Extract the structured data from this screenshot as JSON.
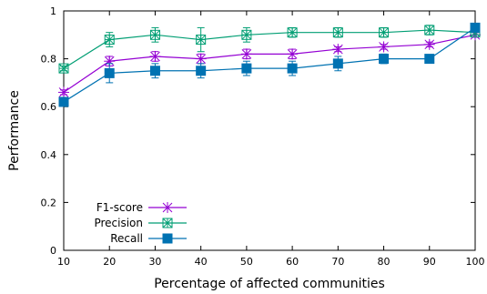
{
  "chart_data": {
    "type": "line",
    "xlabel": "Percentage of affected communities",
    "ylabel": "Performance",
    "xlim": [
      10,
      100
    ],
    "ylim": [
      0,
      1
    ],
    "x": [
      10,
      20,
      30,
      40,
      50,
      60,
      70,
      80,
      90,
      100
    ],
    "xticks": [
      "10",
      "20",
      "30",
      "40",
      "50",
      "60",
      "70",
      "80",
      "90",
      "100"
    ],
    "yticks": [
      "0",
      "0.2",
      "0.4",
      "0.6",
      "0.8",
      "1"
    ],
    "grid": false,
    "legend_position": "bottom-left",
    "series": [
      {
        "name": "F1-score",
        "color": "#9400d3",
        "marker": "star",
        "values": [
          0.66,
          0.79,
          0.81,
          0.8,
          0.82,
          0.82,
          0.84,
          0.85,
          0.86,
          0.9
        ],
        "errors": [
          0.01,
          0.02,
          0.02,
          0.02,
          0.02,
          0.02,
          0.01,
          0.01,
          0.01,
          0.01
        ]
      },
      {
        "name": "Precision",
        "color": "#009e73",
        "marker": "boxed-star",
        "values": [
          0.76,
          0.88,
          0.9,
          0.88,
          0.9,
          0.91,
          0.91,
          0.91,
          0.92,
          0.91
        ],
        "errors": [
          0.01,
          0.03,
          0.03,
          0.05,
          0.03,
          0.02,
          0.02,
          0.02,
          0.02,
          0.01
        ]
      },
      {
        "name": "Recall",
        "color": "#0072b2",
        "marker": "square",
        "values": [
          0.62,
          0.74,
          0.75,
          0.75,
          0.76,
          0.76,
          0.78,
          0.8,
          0.8,
          0.93
        ],
        "errors": [
          0.01,
          0.04,
          0.03,
          0.03,
          0.03,
          0.03,
          0.03,
          0.02,
          0.01,
          0.01
        ]
      }
    ]
  }
}
